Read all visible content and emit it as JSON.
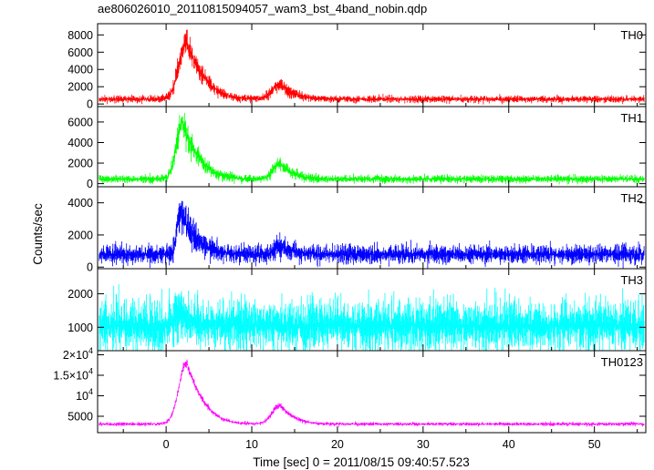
{
  "chart_data": {
    "type": "line",
    "title": "ae806026010_20110815094057_wam3_bst_4band_nobin.qdp",
    "xlabel": "Time [sec] 0 = 2011/08/15 09:40:57.523",
    "ylabel": "Counts/sec",
    "xlim": [
      -8,
      56
    ],
    "x_ticks": [
      "0",
      "10",
      "20",
      "30",
      "40",
      "50"
    ],
    "x_tick_values": [
      0,
      10,
      20,
      30,
      40,
      50
    ],
    "panels": [
      {
        "name": "TH0",
        "color": "#ff0000",
        "ylim": [
          -300,
          9300
        ],
        "y_ticks": [
          {
            "label": "0",
            "value": 0
          },
          {
            "label": "2000",
            "value": 2000
          },
          {
            "label": "4000",
            "value": 4000
          },
          {
            "label": "6000",
            "value": 6000
          },
          {
            "label": "8000",
            "value": 8000
          }
        ],
        "baseline": 550,
        "noise": 220,
        "peaks": [
          {
            "t0": 2.4,
            "amp": 6600,
            "rise": 0.9,
            "decay": 1.7
          },
          {
            "t0": 13.3,
            "amp": 1700,
            "rise": 0.9,
            "decay": 1.5
          }
        ]
      },
      {
        "name": "TH1",
        "color": "#00ff00",
        "ylim": [
          -300,
          7500
        ],
        "y_ticks": [
          {
            "label": "0",
            "value": 0
          },
          {
            "label": "2000",
            "value": 2000
          },
          {
            "label": "4000",
            "value": 4000
          },
          {
            "label": "6000",
            "value": 6000
          }
        ],
        "baseline": 450,
        "noise": 200,
        "peaks": [
          {
            "t0": 1.9,
            "amp": 5500,
            "rise": 0.7,
            "decay": 1.6
          },
          {
            "t0": 13.3,
            "amp": 1500,
            "rise": 0.8,
            "decay": 1.3
          }
        ]
      },
      {
        "name": "TH2",
        "color": "#0000ff",
        "ylim": [
          -100,
          5000
        ],
        "y_ticks": [
          {
            "label": "0",
            "value": 0
          },
          {
            "label": "2000",
            "value": 2000
          },
          {
            "label": "4000",
            "value": 4000
          }
        ],
        "baseline": 800,
        "noise": 320,
        "peaks": [
          {
            "t0": 1.6,
            "amp": 2600,
            "rise": 0.35,
            "decay": 1.6
          },
          {
            "t0": 13.3,
            "amp": 500,
            "rise": 0.6,
            "decay": 1.4
          }
        ]
      },
      {
        "name": "TH3",
        "color": "#00ffff",
        "ylim": [
          300,
          2750
        ],
        "y_ticks": [
          {
            "label": "1000",
            "value": 1000
          },
          {
            "label": "2000",
            "value": 2000
          }
        ],
        "baseline": 1050,
        "noise": 420,
        "peaks": [
          {
            "t0": 1.5,
            "amp": 350,
            "rise": 0.4,
            "decay": 1.2
          }
        ]
      },
      {
        "name": "TH0123",
        "color": "#ff00ff",
        "ylim": [
          1000,
          21000
        ],
        "y_ticks": [
          {
            "label": "5000",
            "value": 5000
          },
          {
            "label": "10",
            "value": 10000,
            "exp": "4"
          },
          {
            "label": "1.5×10",
            "value": 15000,
            "exp": "4"
          },
          {
            "label": "2×10",
            "value": 20000,
            "exp": "4"
          }
        ],
        "baseline": 3100,
        "noise": 230,
        "peaks": [
          {
            "t0": 2.4,
            "amp": 15000,
            "rise": 0.9,
            "decay": 1.6
          },
          {
            "t0": 13.3,
            "amp": 4600,
            "rise": 0.9,
            "decay": 1.3
          }
        ]
      }
    ]
  }
}
